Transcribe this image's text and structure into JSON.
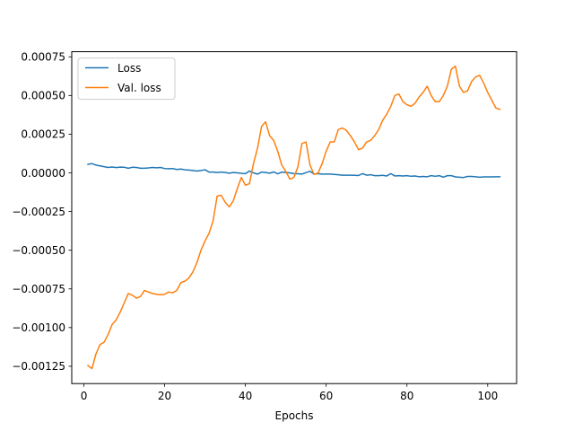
{
  "chart_data": {
    "type": "line",
    "title": "",
    "xlabel": "Epochs",
    "ylabel": "",
    "xlim": [
      -3,
      107.15
    ],
    "ylim": [
      -0.001362,
      0.000783
    ],
    "xticks": [
      0,
      20,
      40,
      60,
      80,
      100
    ],
    "xtick_labels": [
      "0",
      "20",
      "40",
      "60",
      "80",
      "100"
    ],
    "yticks": [
      -0.00125,
      -0.001,
      -0.00075,
      -0.0005,
      -0.00025,
      0.0,
      0.00025,
      0.0005,
      0.00075
    ],
    "ytick_labels": [
      "−0.00125",
      "−0.00100",
      "−0.00075",
      "−0.00050",
      "−0.00025",
      "0.00000",
      "0.00025",
      "0.00050",
      "0.00075"
    ],
    "grid": false,
    "legend_position": "upper-left",
    "series": [
      {
        "name": "Loss",
        "color": "#1f77b4",
        "x": [
          1,
          2,
          3,
          4,
          5,
          6,
          7,
          8,
          9,
          10,
          11,
          12,
          13,
          14,
          15,
          16,
          17,
          18,
          19,
          20,
          21,
          22,
          23,
          24,
          25,
          26,
          27,
          28,
          29,
          30,
          31,
          32,
          33,
          34,
          35,
          36,
          37,
          38,
          39,
          40,
          41,
          42,
          43,
          44,
          45,
          46,
          47,
          48,
          49,
          50,
          51,
          52,
          53,
          54,
          55,
          56,
          57,
          58,
          59,
          60,
          61,
          62,
          63,
          64,
          65,
          66,
          67,
          68,
          69,
          70,
          71,
          72,
          73,
          74,
          75,
          76,
          77,
          78,
          79,
          80,
          81,
          82,
          83,
          84,
          85,
          86,
          87,
          88,
          89,
          90,
          91,
          92,
          93,
          94,
          95,
          96,
          97,
          98,
          99,
          100,
          101,
          102,
          103
        ],
        "y": [
          5.5e-05,
          6e-05,
          5e-05,
          4.5e-05,
          4e-05,
          3.5e-05,
          3.8e-05,
          3.4e-05,
          3.7e-05,
          3.6e-05,
          3e-05,
          3.6e-05,
          3.5e-05,
          3e-05,
          3e-05,
          3.2e-05,
          3.5e-05,
          3.3e-05,
          3.5e-05,
          2.8e-05,
          2.7e-05,
          2.8e-05,
          2.2e-05,
          2.5e-05,
          2e-05,
          1.8e-05,
          1.5e-05,
          1.2e-05,
          1.5e-05,
          2e-05,
          5e-06,
          5e-06,
          2e-06,
          5e-06,
          2e-06,
          -2e-06,
          2e-06,
          0.0,
          -3e-06,
          -5e-06,
          1.2e-05,
          0.0,
          -8e-06,
          5e-06,
          2e-06,
          -2e-06,
          6e-06,
          -6e-06,
          5e-06,
          2e-06,
          0.0,
          -5e-06,
          -6e-06,
          -8e-06,
          2e-06,
          1e-05,
          -8e-06,
          -5e-06,
          -8e-06,
          -8e-06,
          -8e-06,
          -1e-05,
          -1.2e-05,
          -1.5e-05,
          -1.5e-05,
          -1.5e-05,
          -1.6e-05,
          -1.7e-05,
          -5e-06,
          -1.5e-05,
          -1.2e-05,
          -1.8e-05,
          -1.8e-05,
          -1.6e-05,
          -2e-05,
          -5e-06,
          -2e-05,
          -1.8e-05,
          -2e-05,
          -1.8e-05,
          -2.2e-05,
          -2e-05,
          -2.5e-05,
          -2.3e-05,
          -2.5e-05,
          -1.8e-05,
          -2.2e-05,
          -1.8e-05,
          -2.8e-05,
          -1.8e-05,
          -1.8e-05,
          -2.6e-05,
          -2.8e-05,
          -3e-05,
          -2.3e-05,
          -2.3e-05,
          -2.5e-05,
          -2.8e-05,
          -2.6e-05,
          -2.6e-05,
          -2.6e-05,
          -2.5e-05,
          -2.5e-05
        ]
      },
      {
        "name": "Val. loss",
        "color": "#ff7f0e",
        "x": [
          1,
          2,
          3,
          4,
          5,
          6,
          7,
          8,
          9,
          10,
          11,
          12,
          13,
          14,
          15,
          16,
          17,
          18,
          19,
          20,
          21,
          22,
          23,
          24,
          25,
          26,
          27,
          28,
          29,
          30,
          31,
          32,
          33,
          34,
          35,
          36,
          37,
          38,
          39,
          40,
          41,
          42,
          43,
          44,
          45,
          46,
          47,
          48,
          49,
          50,
          51,
          52,
          53,
          54,
          55,
          56,
          57,
          58,
          59,
          60,
          61,
          62,
          63,
          64,
          65,
          66,
          67,
          68,
          69,
          70,
          71,
          72,
          73,
          74,
          75,
          76,
          77,
          78,
          79,
          80,
          81,
          82,
          83,
          84,
          85,
          86,
          87,
          88,
          89,
          90,
          91,
          92,
          93,
          94,
          95,
          96,
          97,
          98,
          99,
          100,
          101,
          102,
          103
        ],
        "y": [
          -0.001245,
          -0.001265,
          -0.00117,
          -0.00111,
          -0.001095,
          -0.001045,
          -0.00098,
          -0.00095,
          -0.0009,
          -0.00084,
          -0.00078,
          -0.00079,
          -0.00081,
          -0.0008,
          -0.00076,
          -0.00077,
          -0.00078,
          -0.000785,
          -0.000788,
          -0.000785,
          -0.00077,
          -0.000775,
          -0.00076,
          -0.00071,
          -0.0007,
          -0.00068,
          -0.00064,
          -0.00058,
          -0.0005,
          -0.00044,
          -0.00039,
          -0.00031,
          -0.00015,
          -0.000145,
          -0.00019,
          -0.00022,
          -0.00018,
          -0.0001,
          -3e-05,
          -8e-05,
          -7e-05,
          6e-05,
          0.00016,
          0.0003,
          0.00033,
          0.00024,
          0.00021,
          0.00014,
          5e-05,
          1e-05,
          -4e-05,
          -3e-05,
          4e-05,
          0.00019,
          0.0002,
          5e-05,
          -1e-05,
          0.0,
          6e-05,
          0.00014,
          0.0002,
          0.0002,
          0.00028,
          0.00029,
          0.000275,
          0.00024,
          0.0002,
          0.00015,
          0.00016,
          0.0002,
          0.00021,
          0.00024,
          0.00028,
          0.00034,
          0.00038,
          0.00043,
          0.0005,
          0.00051,
          0.00046,
          0.00044,
          0.00043,
          0.00045,
          0.00049,
          0.00052,
          0.00056,
          0.0005,
          0.00046,
          0.00046,
          0.0005,
          0.00056,
          0.00067,
          0.00069,
          0.00056,
          0.00052,
          0.00053,
          0.00059,
          0.00062,
          0.00063,
          0.00058,
          0.00052,
          0.00047,
          0.00042,
          0.00041
        ]
      }
    ]
  }
}
